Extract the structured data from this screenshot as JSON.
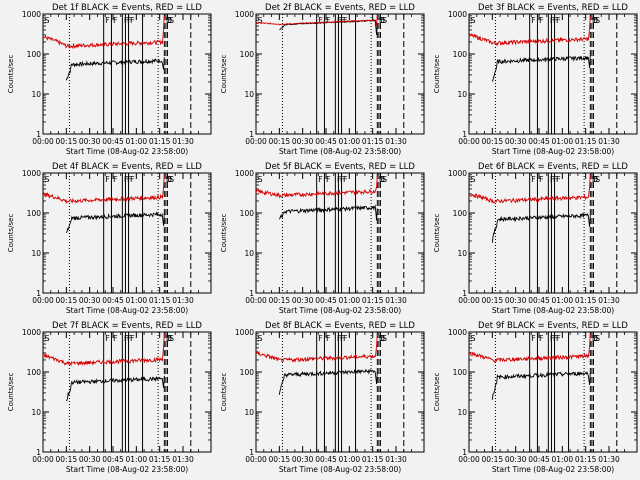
{
  "chart_data": [
    {
      "type": "line",
      "title": "Det 1f BLACK = Events, RED = LLD",
      "xlabel": "Start Time (08-Aug-02 23:58:00)",
      "ylabel": "Counts/sec",
      "ylim": [
        1,
        1000
      ],
      "yscale": "log",
      "xlim": [
        0,
        108
      ],
      "series": [
        {
          "name": "Events",
          "color": "#000000",
          "level": 55,
          "start": 15,
          "start_value": 22,
          "end_rise": 82
        },
        {
          "name": "LLD",
          "color": "#d40000",
          "level": 160,
          "start": 0,
          "start_value": 270,
          "end_rise": 900
        }
      ]
    },
    {
      "type": "line",
      "title": "Det 2f BLACK = Events, RED = LLD",
      "xlabel": "Start Time (08-Aug-02 23:58:00)",
      "ylabel": "Counts/sec",
      "ylim": [
        1,
        1000
      ],
      "yscale": "log",
      "xlim": [
        0,
        108
      ],
      "series": [
        {
          "name": "Events",
          "color": "#000000",
          "level": 550,
          "start": 15,
          "start_value": 400,
          "end_rise": 600
        },
        {
          "name": "LLD",
          "color": "#d40000",
          "level": 560,
          "start": 0,
          "start_value": 600,
          "end_rise": 1000
        }
      ]
    },
    {
      "type": "line",
      "title": "Det 3f BLACK = Events, RED = LLD",
      "xlabel": "Start Time (08-Aug-02 23:58:00)",
      "ylabel": "Counts/sec",
      "ylim": [
        1,
        1000
      ],
      "yscale": "log",
      "xlim": [
        0,
        108
      ],
      "series": [
        {
          "name": "Events",
          "color": "#000000",
          "level": 65,
          "start": 15,
          "start_value": 20,
          "end_rise": 90
        },
        {
          "name": "LLD",
          "color": "#d40000",
          "level": 190,
          "start": 0,
          "start_value": 300,
          "end_rise": 900
        }
      ]
    },
    {
      "type": "line",
      "title": "Det 4f BLACK = Events, RED = LLD",
      "xlabel": "Start Time (08-Aug-02 23:58:00)",
      "ylabel": "Counts/sec",
      "ylim": [
        1,
        1000
      ],
      "yscale": "log",
      "xlim": [
        0,
        108
      ],
      "series": [
        {
          "name": "Events",
          "color": "#000000",
          "level": 75,
          "start": 15,
          "start_value": 30,
          "end_rise": 95
        },
        {
          "name": "LLD",
          "color": "#d40000",
          "level": 200,
          "start": 0,
          "start_value": 300,
          "end_rise": 900
        }
      ]
    },
    {
      "type": "line",
      "title": "Det 5f BLACK = Events, RED = LLD",
      "xlabel": "Start Time (08-Aug-02 23:58:00)",
      "ylabel": "Counts/sec",
      "ylim": [
        1,
        1000
      ],
      "yscale": "log",
      "xlim": [
        0,
        108
      ],
      "series": [
        {
          "name": "Events",
          "color": "#000000",
          "level": 110,
          "start": 15,
          "start_value": 70,
          "end_rise": 130
        },
        {
          "name": "LLD",
          "color": "#d40000",
          "level": 280,
          "start": 0,
          "start_value": 350,
          "end_rise": 900
        }
      ]
    },
    {
      "type": "line",
      "title": "Det 6f BLACK = Events, RED = LLD",
      "xlabel": "Start Time (08-Aug-02 23:58:00)",
      "ylabel": "Counts/sec",
      "ylim": [
        1,
        1000
      ],
      "yscale": "log",
      "xlim": [
        0,
        108
      ],
      "series": [
        {
          "name": "Events",
          "color": "#000000",
          "level": 70,
          "start": 15,
          "start_value": 20,
          "end_rise": 90
        },
        {
          "name": "LLD",
          "color": "#d40000",
          "level": 200,
          "start": 0,
          "start_value": 300,
          "end_rise": 900
        }
      ]
    },
    {
      "type": "line",
      "title": "Det 7f BLACK = Events, RED = LLD",
      "xlabel": "Start Time (08-Aug-02 23:58:00)",
      "ylabel": "Counts/sec",
      "ylim": [
        1,
        1000
      ],
      "yscale": "log",
      "xlim": [
        0,
        108
      ],
      "series": [
        {
          "name": "Events",
          "color": "#000000",
          "level": 55,
          "start": 15,
          "start_value": 18,
          "end_rise": 80
        },
        {
          "name": "LLD",
          "color": "#d40000",
          "level": 165,
          "start": 0,
          "start_value": 260,
          "end_rise": 900
        }
      ]
    },
    {
      "type": "line",
      "title": "Det 8f BLACK = Events, RED = LLD",
      "xlabel": "Start Time (08-Aug-02 23:58:00)",
      "ylabel": "Counts/sec",
      "ylim": [
        1,
        1000
      ],
      "yscale": "log",
      "xlim": [
        0,
        108
      ],
      "series": [
        {
          "name": "Events",
          "color": "#000000",
          "level": 85,
          "start": 15,
          "start_value": 30,
          "end_rise": 100
        },
        {
          "name": "LLD",
          "color": "#d40000",
          "level": 200,
          "start": 0,
          "start_value": 300,
          "end_rise": 900
        }
      ]
    },
    {
      "type": "line",
      "title": "Det 9f BLACK = Events, RED = LLD",
      "xlabel": "Start Time (08-Aug-02 23:58:00)",
      "ylabel": "Counts/sec",
      "ylim": [
        1,
        1000
      ],
      "yscale": "log",
      "xlim": [
        0,
        108
      ],
      "series": [
        {
          "name": "Events",
          "color": "#000000",
          "level": 75,
          "start": 15,
          "start_value": 22,
          "end_rise": 95
        },
        {
          "name": "LLD",
          "color": "#d40000",
          "level": 200,
          "start": 0,
          "start_value": 300,
          "end_rise": 900
        }
      ]
    }
  ],
  "common": {
    "x_tick_values": [
      0,
      15,
      30,
      45,
      60,
      75,
      90
    ],
    "x_tick_labels": [
      "00:00",
      "00:15",
      "00:30",
      "00:45",
      "01:00",
      "01:15",
      "01:30"
    ],
    "y_tick_values": [
      1,
      10,
      100,
      1000
    ],
    "y_tick_labels": [
      "1",
      "10",
      "100",
      "1000"
    ],
    "markers": [
      {
        "label": "S",
        "x": 0,
        "style": "dashed"
      },
      {
        "label": "",
        "x": 17,
        "style": "dotted"
      },
      {
        "label": "F",
        "x": 39,
        "style": "solid"
      },
      {
        "label": "F",
        "x": 44,
        "style": "solid"
      },
      {
        "label": "F",
        "x": 51,
        "style": "solid"
      },
      {
        "label": "F",
        "x": 53,
        "style": "solid"
      },
      {
        "label": "F",
        "x": 55,
        "style": "solid"
      },
      {
        "label": "",
        "x": 64,
        "style": "solid"
      },
      {
        "label": "",
        "x": 74,
        "style": "dotted"
      },
      {
        "label": "D",
        "x": 78,
        "style": "dashed"
      },
      {
        "label": "E",
        "x": 79,
        "style": "dashed"
      },
      {
        "label": "S",
        "x": 80,
        "style": "dashed"
      },
      {
        "label": "",
        "x": 95,
        "style": "dashed"
      }
    ],
    "data_end": 77
  }
}
